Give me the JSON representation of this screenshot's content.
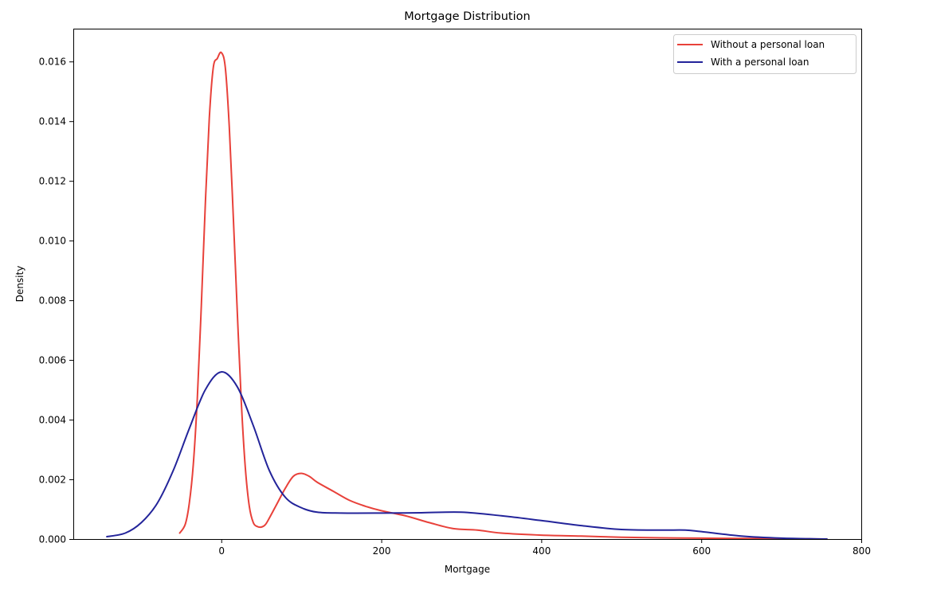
{
  "chart_data": {
    "type": "line",
    "title": "Mortgage Distribution",
    "xlabel": "Mortgage",
    "ylabel": "Density",
    "xlim": [
      -185,
      800
    ],
    "ylim": [
      0,
      0.0171
    ],
    "x_ticks": [
      0,
      200,
      400,
      600,
      800
    ],
    "x_tick_labels": [
      "0",
      "200",
      "400",
      "600",
      "800"
    ],
    "y_ticks": [
      0,
      0.002,
      0.004,
      0.006,
      0.008,
      0.01,
      0.012,
      0.014,
      0.016
    ],
    "y_tick_labels": [
      "0.000",
      "0.002",
      "0.004",
      "0.006",
      "0.008",
      "0.010",
      "0.012",
      "0.014",
      "0.016"
    ],
    "grid": false,
    "legend_position": "top-right",
    "series": [
      {
        "name": "Without a personal loan",
        "color": "#e8413a",
        "x": [
          -52,
          -45,
          -40,
          -35,
          -30,
          -25,
          -20,
          -15,
          -10,
          -5,
          0,
          5,
          10,
          15,
          20,
          25,
          30,
          35,
          40,
          45,
          50,
          55,
          60,
          70,
          80,
          90,
          100,
          110,
          120,
          140,
          160,
          180,
          200,
          230,
          260,
          290,
          320,
          350,
          400,
          450,
          500,
          550,
          600,
          650,
          700,
          757
        ],
        "y": [
          0.0002,
          0.0005,
          0.0012,
          0.0025,
          0.0047,
          0.0078,
          0.0112,
          0.0141,
          0.0158,
          0.0161,
          0.0163,
          0.0158,
          0.0138,
          0.0108,
          0.0076,
          0.0046,
          0.0024,
          0.0011,
          0.00055,
          0.00042,
          0.0004,
          0.00048,
          0.0007,
          0.0012,
          0.0017,
          0.0021,
          0.0022,
          0.0021,
          0.0019,
          0.0016,
          0.0013,
          0.0011,
          0.00095,
          0.00078,
          0.00055,
          0.00035,
          0.0003,
          0.0002,
          0.00013,
          0.0001,
          6e-05,
          4e-05,
          3e-05,
          2e-05,
          1e-05,
          0.0
        ]
      },
      {
        "name": "With a personal loan",
        "color": "#23249a",
        "x": [
          -143,
          -120,
          -100,
          -80,
          -60,
          -40,
          -20,
          0,
          20,
          40,
          60,
          80,
          100,
          120,
          150,
          200,
          250,
          300,
          350,
          400,
          450,
          500,
          550,
          580,
          600,
          650,
          700,
          757
        ],
        "y": [
          8e-05,
          0.0002,
          0.00055,
          0.0012,
          0.0023,
          0.0037,
          0.005,
          0.0056,
          0.0051,
          0.0038,
          0.0023,
          0.0014,
          0.00105,
          0.0009,
          0.00087,
          0.00087,
          0.00088,
          0.0009,
          0.00078,
          0.00062,
          0.00045,
          0.00032,
          0.0003,
          0.0003,
          0.00025,
          0.0001,
          3e-05,
          0.0
        ]
      }
    ]
  }
}
